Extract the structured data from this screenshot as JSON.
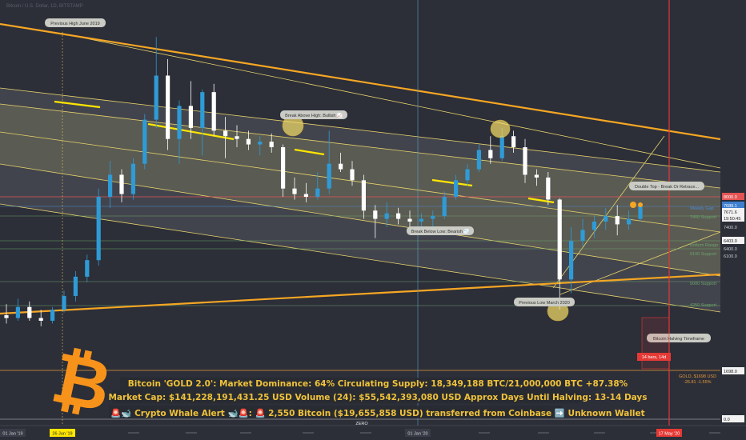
{
  "chart_data": {
    "type": "candlestick",
    "symbol_header": "Bitcoin / U.S. Dollar, 1D, BITSTAMP",
    "x_ticks": [
      "01 Jan '19",
      "26 Jun '19",
      "01 Jan '20",
      "17 May '20"
    ],
    "bottom_label": "ZERO",
    "y_ticks_right": [
      {
        "label": "8000.0",
        "value": 8000,
        "style": "red-box"
      },
      {
        "label": "7689.1",
        "value": 7689.1,
        "style": "blue-box"
      },
      {
        "label": "7671.6",
        "value": 7671.6,
        "style": "white-box"
      },
      {
        "label": "19:50:45",
        "value": 7600,
        "style": "white-box"
      },
      {
        "label": "7400.0",
        "value": 7400,
        "style": "plain"
      },
      {
        "label": "6403.0",
        "value": 6403,
        "style": "white-box"
      },
      {
        "label": "6400.0",
        "value": 6400,
        "style": "plain"
      },
      {
        "label": "6100.0",
        "value": 6100,
        "style": "plain"
      },
      {
        "label": "1698.0",
        "value": 1698,
        "style": "white-box"
      },
      {
        "label": "0.0",
        "value": 0,
        "style": "white-box"
      }
    ],
    "horizontal_levels": [
      {
        "label": "Weekly Gap",
        "value": 7900
      },
      {
        "label": "7400 Support",
        "value": 7400
      },
      {
        "label": "Bottom Range",
        "value": 6500
      },
      {
        "label": "6100 Support",
        "value": 6100
      },
      {
        "label": "5000 Support",
        "value": 5000
      },
      {
        "label": "4250 Support",
        "value": 4250
      },
      {
        "label": "GOLD, $1698 USD",
        "value": 1698
      },
      {
        "label": "-26.81 -1.55%",
        "value": 1698
      }
    ],
    "annotations": [
      "Previous High June 2019",
      "Break Above High: Bullish 📈",
      "Break Below Low: Bearish 📉",
      "Double Top - Break Or Retrace...",
      "Previous Low March 2020",
      "Bitcoin Halving Timeframe",
      "14 bars, 14d"
    ],
    "candles": [
      {
        "o": 3700,
        "h": 4100,
        "l": 3400,
        "c": 3600
      },
      {
        "o": 3600,
        "h": 4300,
        "l": 3500,
        "c": 4000
      },
      {
        "o": 4000,
        "h": 4200,
        "l": 3500,
        "c": 3600
      },
      {
        "o": 3600,
        "h": 3900,
        "l": 3300,
        "c": 3500
      },
      {
        "o": 3500,
        "h": 4000,
        "l": 3400,
        "c": 3900
      },
      {
        "o": 3900,
        "h": 4600,
        "l": 3800,
        "c": 4400
      },
      {
        "o": 4400,
        "h": 5300,
        "l": 4200,
        "c": 5100
      },
      {
        "o": 5100,
        "h": 5900,
        "l": 4900,
        "c": 5700
      },
      {
        "o": 5700,
        "h": 8300,
        "l": 5500,
        "c": 8000
      },
      {
        "o": 8000,
        "h": 9300,
        "l": 7600,
        "c": 8800
      },
      {
        "o": 8800,
        "h": 9000,
        "l": 7800,
        "c": 8100
      },
      {
        "o": 8100,
        "h": 9400,
        "l": 7900,
        "c": 9200
      },
      {
        "o": 9200,
        "h": 11000,
        "l": 9000,
        "c": 10800
      },
      {
        "o": 10800,
        "h": 13800,
        "l": 10500,
        "c": 12400
      },
      {
        "o": 12400,
        "h": 13000,
        "l": 9700,
        "c": 10100
      },
      {
        "o": 10100,
        "h": 11500,
        "l": 9200,
        "c": 11300
      },
      {
        "o": 11300,
        "h": 12200,
        "l": 10100,
        "c": 10500
      },
      {
        "o": 10500,
        "h": 11900,
        "l": 9500,
        "c": 11800
      },
      {
        "o": 11800,
        "h": 12100,
        "l": 10200,
        "c": 10400
      },
      {
        "o": 10400,
        "h": 10900,
        "l": 9400,
        "c": 10200
      },
      {
        "o": 10200,
        "h": 10600,
        "l": 9800,
        "c": 10100
      },
      {
        "o": 10100,
        "h": 10400,
        "l": 9700,
        "c": 9900
      },
      {
        "o": 9900,
        "h": 10200,
        "l": 9500,
        "c": 10000
      },
      {
        "o": 10000,
        "h": 10300,
        "l": 9600,
        "c": 9800
      },
      {
        "o": 9800,
        "h": 9900,
        "l": 8000,
        "c": 8300
      },
      {
        "o": 8300,
        "h": 8700,
        "l": 7900,
        "c": 8100
      },
      {
        "o": 8100,
        "h": 8500,
        "l": 7800,
        "c": 8000
      },
      {
        "o": 8000,
        "h": 8900,
        "l": 7900,
        "c": 8300
      },
      {
        "o": 8300,
        "h": 10400,
        "l": 8100,
        "c": 9200
      },
      {
        "o": 9200,
        "h": 9600,
        "l": 8900,
        "c": 9000
      },
      {
        "o": 9000,
        "h": 9300,
        "l": 8400,
        "c": 8600
      },
      {
        "o": 8600,
        "h": 8800,
        "l": 7200,
        "c": 7500
      },
      {
        "o": 7500,
        "h": 7700,
        "l": 6500,
        "c": 7200
      },
      {
        "o": 7200,
        "h": 7800,
        "l": 6900,
        "c": 7400
      },
      {
        "o": 7400,
        "h": 7600,
        "l": 7000,
        "c": 7200
      },
      {
        "o": 7200,
        "h": 7500,
        "l": 6900,
        "c": 7100
      },
      {
        "o": 7100,
        "h": 7400,
        "l": 6800,
        "c": 7200
      },
      {
        "o": 7200,
        "h": 7500,
        "l": 6900,
        "c": 7300
      },
      {
        "o": 7300,
        "h": 8200,
        "l": 7200,
        "c": 8000
      },
      {
        "o": 8000,
        "h": 8800,
        "l": 7900,
        "c": 8600
      },
      {
        "o": 8600,
        "h": 9200,
        "l": 8400,
        "c": 9000
      },
      {
        "o": 9000,
        "h": 9900,
        "l": 8900,
        "c": 9700
      },
      {
        "o": 9700,
        "h": 10200,
        "l": 9200,
        "c": 9400
      },
      {
        "o": 9400,
        "h": 10500,
        "l": 9300,
        "c": 10200
      },
      {
        "o": 10200,
        "h": 10400,
        "l": 9600,
        "c": 9800
      },
      {
        "o": 9800,
        "h": 10100,
        "l": 8500,
        "c": 8800
      },
      {
        "o": 8800,
        "h": 9000,
        "l": 8400,
        "c": 8700
      },
      {
        "o": 8700,
        "h": 8900,
        "l": 7700,
        "c": 7900
      },
      {
        "o": 7900,
        "h": 7950,
        "l": 3900,
        "c": 5000
      },
      {
        "o": 5000,
        "h": 6900,
        "l": 4500,
        "c": 6400
      },
      {
        "o": 6400,
        "h": 7200,
        "l": 6200,
        "c": 6800
      },
      {
        "o": 6800,
        "h": 7300,
        "l": 6500,
        "c": 7100
      },
      {
        "o": 7100,
        "h": 7600,
        "l": 6800,
        "c": 7300
      },
      {
        "o": 7300,
        "h": 7700,
        "l": 6600,
        "c": 7000
      },
      {
        "o": 7000,
        "h": 7500,
        "l": 6800,
        "c": 7200
      },
      {
        "o": 7200,
        "h": 7800,
        "l": 7100,
        "c": 7700
      }
    ]
  },
  "info_box": {
    "line1": "Bitcoin 'GOLD 2.0': Market Dominance: 64%  Circulating Supply: 18,349,188 BTC/21,000,000 BTC +87.38%",
    "line2": "Market Cap: $141,228,191,431.25 USD Volume (24): $55,542,393,080 USD Approx Days Until Halving: 13-14 Days",
    "line3": "🚨🐋 Crypto Whale Alert 🐋🚨: 🚨 2,550 Bitcoin ($19,655,858 USD) transferred from Coinbase ➡️ Unknown Wallet"
  },
  "icons": {
    "logo": "bitcoin-logo-icon"
  },
  "colors": {
    "background": "#2c2e38",
    "channel_fill": "rgba(230,230,230,0.14)",
    "channel_inner": "rgba(220,210,120,0.18)",
    "channel_line": "#e7d36a",
    "orange_trend": "#f5a623",
    "candle_up": "#2f9bd6",
    "candle_down": "#ffffff",
    "halving_line": "#e53935",
    "text_gold": "#f0c23a",
    "bitcoin_orange": "#f7931a"
  }
}
